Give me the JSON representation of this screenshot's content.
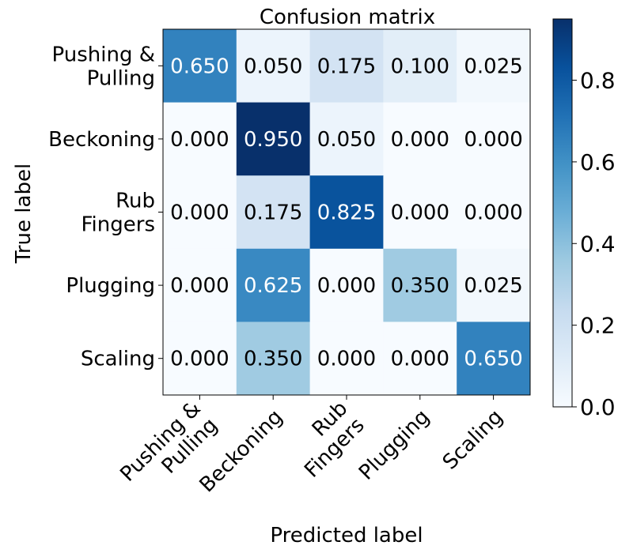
{
  "chart_data": {
    "type": "heatmap",
    "title": "Confusion matrix",
    "xlabel": "Predicted label",
    "ylabel": "True label",
    "x_categories": [
      [
        "Pushing &",
        "Pulling"
      ],
      [
        "Beckoning"
      ],
      [
        "Rub",
        "Fingers"
      ],
      [
        "Plugging"
      ],
      [
        "Scaling"
      ]
    ],
    "y_categories": [
      [
        "Pushing &",
        "Pulling"
      ],
      [
        "Beckoning"
      ],
      [
        "Rub",
        "Fingers"
      ],
      [
        "Plugging"
      ],
      [
        "Scaling"
      ]
    ],
    "values": [
      [
        0.65,
        0.05,
        0.175,
        0.1,
        0.025
      ],
      [
        0.0,
        0.95,
        0.05,
        0.0,
        0.0
      ],
      [
        0.0,
        0.175,
        0.825,
        0.0,
        0.0
      ],
      [
        0.0,
        0.625,
        0.0,
        0.35,
        0.025
      ],
      [
        0.0,
        0.35,
        0.0,
        0.0,
        0.65
      ]
    ],
    "cell_labels": [
      [
        "0.650",
        "0.050",
        "0.175",
        "0.100",
        "0.025"
      ],
      [
        "0.000",
        "0.950",
        "0.050",
        "0.000",
        "0.000"
      ],
      [
        "0.000",
        "0.175",
        "0.825",
        "0.000",
        "0.000"
      ],
      [
        "0.000",
        "0.625",
        "0.000",
        "0.350",
        "0.025"
      ],
      [
        "0.000",
        "0.350",
        "0.000",
        "0.000",
        "0.650"
      ]
    ],
    "colorbar": {
      "colormap": "Blues",
      "range": [
        0.0,
        0.95
      ],
      "ticks": [
        0.0,
        0.2,
        0.4,
        0.6,
        0.8
      ],
      "tick_labels": [
        "0.0",
        "0.2",
        "0.4",
        "0.6",
        "0.8"
      ]
    },
    "text_color_dark": "#000000",
    "text_color_light": "#ffffff"
  }
}
